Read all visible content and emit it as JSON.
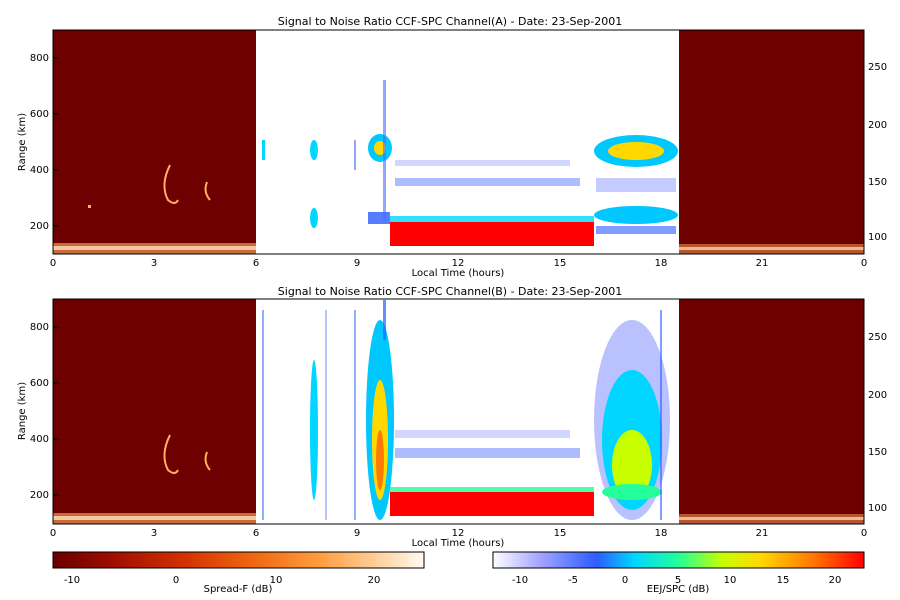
{
  "chart_data": [
    {
      "type": "heatmap",
      "title": "Signal to Noise Ratio CCF-SPC Channel(A) - Date: 23-Sep-2001",
      "xlabel": "Local Time (hours)",
      "ylabel": "Range (km)",
      "xlim": [
        0,
        24
      ],
      "ylim": [
        90,
        890
      ],
      "x_ticks": [
        "0",
        "3",
        "6",
        "9",
        "12",
        "15",
        "18",
        "21",
        "0"
      ],
      "y_ticks": [
        200,
        400,
        600,
        800
      ],
      "right_y_ticks": [
        100,
        150,
        200,
        250
      ],
      "right_ylim": [
        88,
        283
      ],
      "features": [
        {
          "x": [
            0,
            6
          ],
          "y": [
            90,
            890
          ],
          "value": -12,
          "colorbar": "Spread-F"
        },
        {
          "x": [
            18.5,
            24
          ],
          "y": [
            90,
            890
          ],
          "value": -12,
          "colorbar": "Spread-F"
        },
        {
          "x": [
            0,
            6
          ],
          "y": [
            100,
            130
          ],
          "value": 15,
          "colorbar": "Spread-F"
        },
        {
          "x": [
            18.5,
            24
          ],
          "y": [
            100,
            125
          ],
          "value": 15,
          "colorbar": "Spread-F"
        },
        {
          "x": [
            10,
            16
          ],
          "y": [
            120,
            200
          ],
          "value": 22,
          "colorbar": "EEJ/SPC"
        },
        {
          "x": [
            10,
            16
          ],
          "y": [
            195,
            215
          ],
          "value": 2,
          "colorbar": "EEJ/SPC"
        },
        {
          "x": [
            9.3,
            10
          ],
          "y": [
            380,
            520
          ],
          "value": 3,
          "colorbar": "EEJ/SPC"
        },
        {
          "x": [
            10.2,
            15.8
          ],
          "y": [
            330,
            380
          ],
          "value": -2,
          "colorbar": "EEJ/SPC"
        },
        {
          "x": [
            16.1,
            18.2
          ],
          "y": [
            390,
            500
          ],
          "value": 3,
          "colorbar": "EEJ/SPC"
        },
        {
          "x": [
            16.1,
            18.2
          ],
          "y": [
            170,
            250
          ],
          "value": 0,
          "colorbar": "EEJ/SPC"
        }
      ]
    },
    {
      "type": "heatmap",
      "title": "Signal to Noise Ratio CCF-SPC Channel(B) - Date: 23-Sep-2001",
      "xlabel": "Local Time (hours)",
      "ylabel": "Range (km)",
      "xlim": [
        0,
        24
      ],
      "ylim": [
        90,
        890
      ],
      "x_ticks": [
        "0",
        "3",
        "6",
        "9",
        "12",
        "15",
        "18",
        "21",
        "0"
      ],
      "y_ticks": [
        200,
        400,
        600,
        800
      ],
      "right_y_ticks": [
        100,
        150,
        200,
        250
      ],
      "right_ylim": [
        88,
        283
      ],
      "features": [
        {
          "x": [
            0,
            6
          ],
          "y": [
            90,
            890
          ],
          "value": -12,
          "colorbar": "Spread-F"
        },
        {
          "x": [
            18.5,
            24
          ],
          "y": [
            90,
            890
          ],
          "value": -12,
          "colorbar": "Spread-F"
        },
        {
          "x": [
            10,
            16
          ],
          "y": [
            130,
            210
          ],
          "value": 22,
          "colorbar": "EEJ/SPC"
        },
        {
          "x": [
            9.3,
            10
          ],
          "y": [
            150,
            890
          ],
          "value": 8,
          "colorbar": "EEJ/SPC"
        },
        {
          "x": [
            16.1,
            18.3
          ],
          "y": [
            150,
            720
          ],
          "value": 10,
          "colorbar": "EEJ/SPC"
        },
        {
          "x": [
            10.2,
            15.8
          ],
          "y": [
            330,
            420
          ],
          "value": -2,
          "colorbar": "EEJ/SPC"
        }
      ]
    }
  ],
  "colorbars": [
    {
      "label": "Spread-F (dB)",
      "ticks": [
        "-10",
        "0",
        "10",
        "20"
      ],
      "range": [
        -14,
        26
      ],
      "colors": [
        "#6a0000",
        "#9c0d00",
        "#d23000",
        "#f06a12",
        "#ff9e40",
        "#ffd2a0",
        "#fffaf0"
      ]
    },
    {
      "label": "EEJ/SPC (dB)",
      "ticks": [
        "-10",
        "-5",
        "0",
        "5",
        "10",
        "15",
        "20"
      ],
      "range": [
        -13,
        23
      ],
      "colors": [
        "#ffffff",
        "#a8a8ff",
        "#2c5cff",
        "#00d6ff",
        "#24ff9a",
        "#c8ff00",
        "#ffd800",
        "#ff7a00",
        "#ff0000"
      ]
    }
  ]
}
